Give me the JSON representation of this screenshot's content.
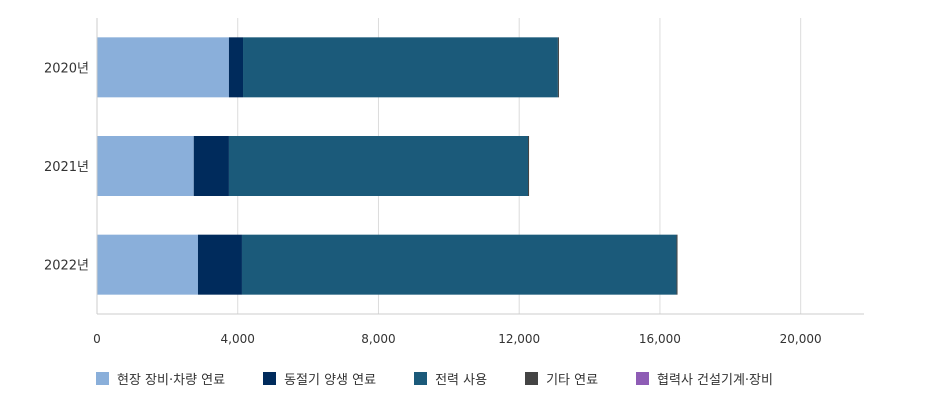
{
  "chart_data": {
    "type": "bar",
    "orientation": "horizontal",
    "stacked": true,
    "title": "",
    "xlabel": "",
    "ylabel": "",
    "categories": [
      "2020년",
      "2021년",
      "2022년"
    ],
    "xlim": [
      0,
      21800
    ],
    "x_ticks": [
      0,
      4000,
      8000,
      12000,
      16000,
      20000
    ],
    "x_tick_labels": [
      "0",
      "4,000",
      "8,000",
      "12,000",
      "16,000",
      "20,000"
    ],
    "grid": "vertical",
    "legend_position": "bottom-left",
    "series": [
      {
        "name": "현장 장비·차량 연료",
        "color": "#8aafda",
        "values": [
          3750,
          2750,
          2870
        ]
      },
      {
        "name": "동절기 양생 연료",
        "color": "#002b5c",
        "values": [
          400,
          1000,
          1250
        ]
      },
      {
        "name": "전력 사용",
        "color": "#1b5a7a",
        "values": [
          8950,
          8500,
          12350
        ]
      },
      {
        "name": "기타 연료",
        "color": "#444444",
        "values": [
          30,
          30,
          30
        ]
      },
      {
        "name": "협력사 건설기계·장비",
        "color": "#8e5cb5",
        "values": [
          0,
          0,
          0
        ]
      }
    ]
  }
}
